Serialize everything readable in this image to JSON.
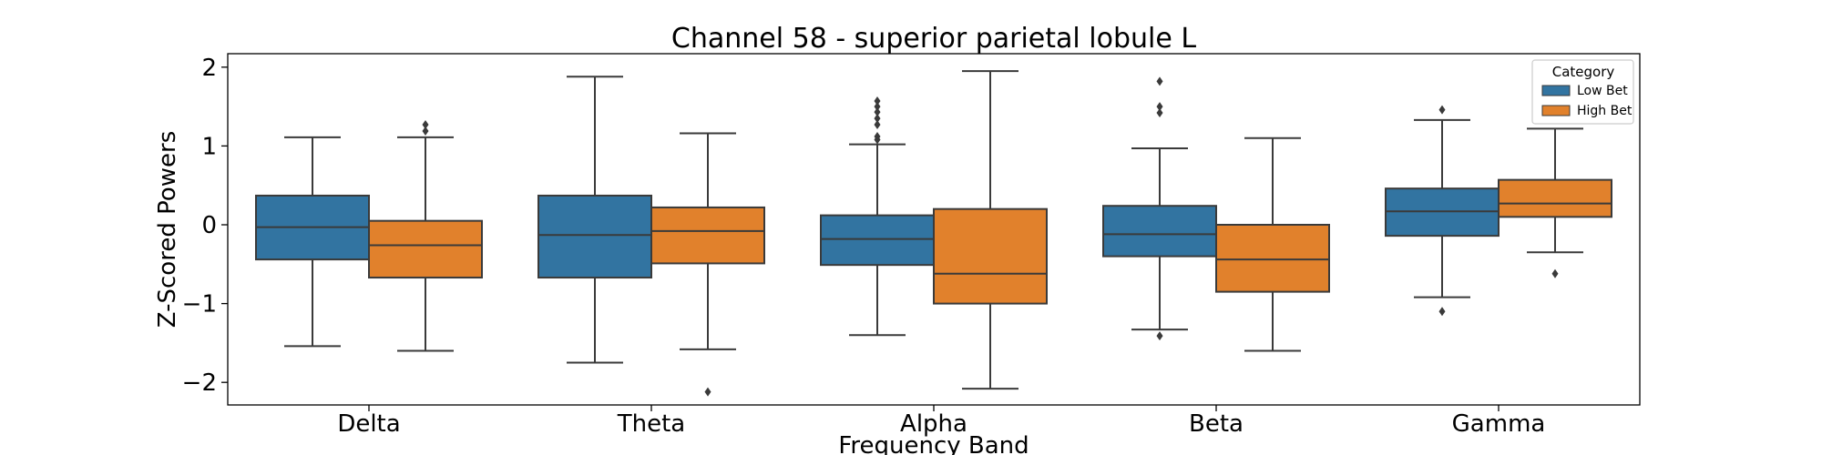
{
  "chart_data": {
    "type": "box",
    "title": "Channel 58 - superior parietal lobule L",
    "xlabel": "Frequency Band",
    "ylabel": "Z-Scored Powers",
    "ylim": [
      -2.3,
      2.15
    ],
    "yticks": [
      -2,
      -1,
      0,
      1,
      2
    ],
    "ytick_labels": [
      "−2",
      "−1",
      "0",
      "1",
      "2"
    ],
    "categories": [
      "Delta",
      "Theta",
      "Alpha",
      "Beta",
      "Gamma"
    ],
    "legend": {
      "title": "Category",
      "placement": "top-right"
    },
    "series": [
      {
        "name": "Low Bet",
        "color": "#3274a1",
        "boxes": [
          {
            "whislo": -1.54,
            "q1": -0.44,
            "med": -0.03,
            "q3": 0.37,
            "whishi": 1.11,
            "fliers": []
          },
          {
            "whislo": -1.75,
            "q1": -0.67,
            "med": -0.13,
            "q3": 0.37,
            "whishi": 1.88,
            "fliers": []
          },
          {
            "whislo": -1.4,
            "q1": -0.51,
            "med": -0.18,
            "q3": 0.12,
            "whishi": 1.02,
            "fliers": [
              1.08,
              1.12,
              1.27,
              1.35,
              1.43,
              1.5,
              1.57
            ]
          },
          {
            "whislo": -1.33,
            "q1": -0.4,
            "med": -0.12,
            "q3": 0.24,
            "whishi": 0.97,
            "fliers": [
              -1.41,
              1.42,
              1.5,
              1.82
            ]
          },
          {
            "whislo": -0.92,
            "q1": -0.14,
            "med": 0.17,
            "q3": 0.46,
            "whishi": 1.33,
            "fliers": [
              -1.1,
              1.46
            ]
          }
        ]
      },
      {
        "name": "High Bet",
        "color": "#e1812c",
        "boxes": [
          {
            "whislo": -1.6,
            "q1": -0.67,
            "med": -0.26,
            "q3": 0.05,
            "whishi": 1.11,
            "fliers": [
              1.19,
              1.27
            ]
          },
          {
            "whislo": -1.58,
            "q1": -0.49,
            "med": -0.08,
            "q3": 0.22,
            "whishi": 1.16,
            "fliers": [
              -2.12
            ]
          },
          {
            "whislo": -2.08,
            "q1": -1.0,
            "med": -0.62,
            "q3": 0.2,
            "whishi": 1.95,
            "fliers": []
          },
          {
            "whislo": -1.6,
            "q1": -0.85,
            "med": -0.44,
            "q3": 0.0,
            "whishi": 1.1,
            "fliers": []
          },
          {
            "whislo": -0.35,
            "q1": 0.1,
            "med": 0.27,
            "q3": 0.57,
            "whishi": 1.22,
            "fliers": [
              -0.62
            ]
          }
        ]
      }
    ]
  }
}
